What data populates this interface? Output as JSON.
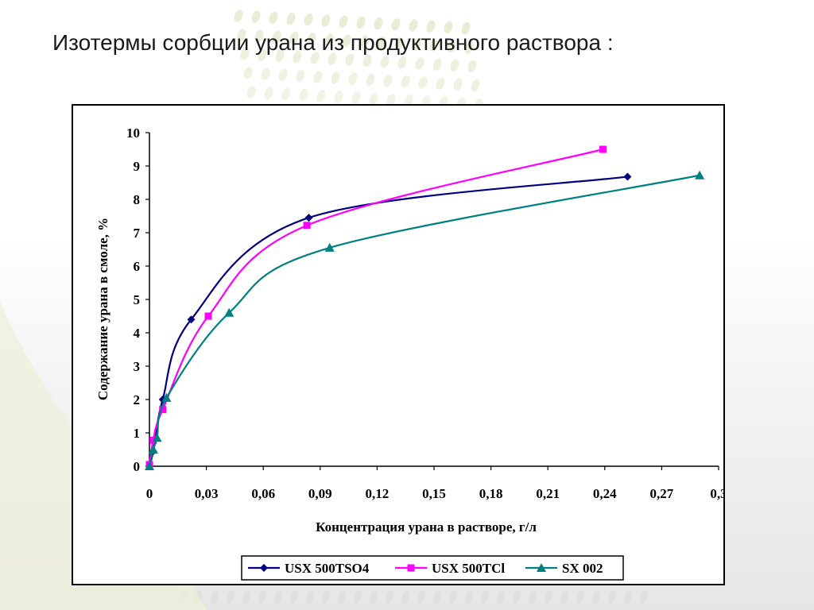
{
  "slide": {
    "title": "Изотермы сорбции урана из продуктивного раствора :"
  },
  "colors": {
    "accent_decor": "#d9dcb2",
    "frame": "#000000",
    "series_1": "#000080",
    "series_2": "#ff00ff",
    "series_3": "#008080"
  },
  "chart_data": {
    "type": "line",
    "title": "",
    "xlabel": "Концентрация урана в растворе, г/л",
    "ylabel": "Содержание урана в смоле, %",
    "xlim": [
      0,
      0.3
    ],
    "ylim": [
      0,
      10
    ],
    "x_ticks": [
      "0",
      "0,03",
      "0,06",
      "0,09",
      "0,12",
      "0,15",
      "0,18",
      "0,21",
      "0,24",
      "0,27",
      "0,3"
    ],
    "y_ticks": [
      "0",
      "1",
      "2",
      "3",
      "4",
      "5",
      "6",
      "7",
      "8",
      "9",
      "10"
    ],
    "grid": false,
    "legend_position": "bottom",
    "series": [
      {
        "name": "USX 500TSO4",
        "marker": "diamond",
        "color": "#000080",
        "points": [
          [
            0,
            0
          ],
          [
            0.002,
            0.45
          ],
          [
            0.007,
            2.0
          ],
          [
            0.022,
            4.4
          ],
          [
            0.084,
            7.45
          ],
          [
            0.252,
            8.68
          ]
        ]
      },
      {
        "name": "USX 500TCl",
        "marker": "square",
        "color": "#ff00ff",
        "points": [
          [
            0,
            0.05
          ],
          [
            0.002,
            0.78
          ],
          [
            0.007,
            1.7
          ],
          [
            0.031,
            4.5
          ],
          [
            0.083,
            7.22
          ],
          [
            0.239,
            9.5
          ]
        ]
      },
      {
        "name": "SX 002",
        "marker": "triangle",
        "color": "#008080",
        "points": [
          [
            0,
            0
          ],
          [
            0.002,
            0.5
          ],
          [
            0.004,
            0.85
          ],
          [
            0.009,
            2.05
          ],
          [
            0.042,
            4.6
          ],
          [
            0.095,
            6.55
          ],
          [
            0.29,
            8.72
          ]
        ]
      }
    ]
  }
}
